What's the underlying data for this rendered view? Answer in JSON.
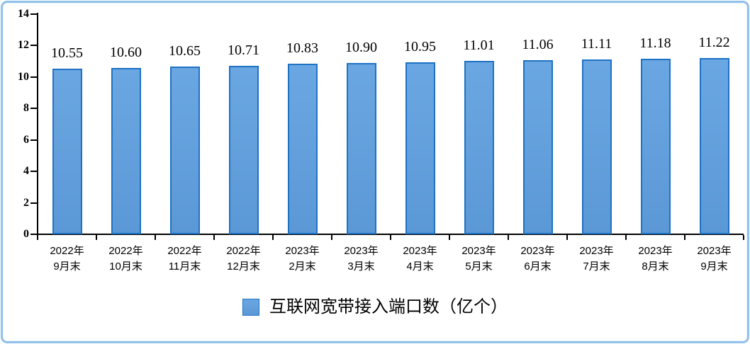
{
  "chart_data": {
    "type": "bar",
    "title": "",
    "legend": "互联网宽带接入端口数（亿个）",
    "legend_position": "bottom",
    "grid": false,
    "categories": [
      [
        "2022年",
        "9月末"
      ],
      [
        "2022年",
        "10月末"
      ],
      [
        "2022年",
        "11月末"
      ],
      [
        "2022年",
        "12月末"
      ],
      [
        "2023年",
        "2月末"
      ],
      [
        "2023年",
        "3月末"
      ],
      [
        "2023年",
        "4月末"
      ],
      [
        "2023年",
        "5月末"
      ],
      [
        "2023年",
        "6月末"
      ],
      [
        "2023年",
        "7月末"
      ],
      [
        "2023年",
        "8月末"
      ],
      [
        "2023年",
        "9月末"
      ]
    ],
    "values": [
      10.55,
      10.6,
      10.65,
      10.71,
      10.83,
      10.9,
      10.95,
      11.01,
      11.06,
      11.11,
      11.18,
      11.22
    ],
    "value_labels": [
      "10.55",
      "10.60",
      "10.65",
      "10.71",
      "10.83",
      "10.90",
      "10.95",
      "11.01",
      "11.06",
      "11.11",
      "11.18",
      "11.22"
    ],
    "xlabel": "",
    "ylabel": "",
    "ylim": [
      0,
      14
    ],
    "yticks": [
      0,
      2,
      4,
      6,
      8,
      10,
      12,
      14
    ],
    "colors": {
      "bar_fill_top": "#6aa7e2",
      "bar_fill_bottom": "#5b98d6",
      "bar_border": "#1e72c4",
      "axis": "#000000",
      "text": "#000000",
      "frame_border": "#92c1ea",
      "background": "#ffffff"
    }
  }
}
